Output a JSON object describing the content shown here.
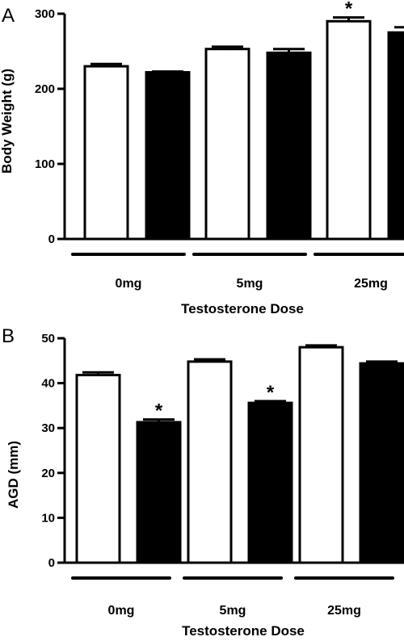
{
  "chart_data": [
    {
      "type": "bar",
      "panel_label": "A",
      "categories": [
        "0mg",
        "5mg",
        "25mg"
      ],
      "xlabel": "Testosterone Dose",
      "ylabel": "Body Weight (g)",
      "ylim": [
        0,
        300
      ],
      "yticks": [
        "0",
        "100",
        "200",
        "300"
      ],
      "series": [
        {
          "color": "#ffffff",
          "values": [
            230,
            253,
            290
          ],
          "errors": [
            3,
            3,
            5
          ],
          "significant": [
            false,
            false,
            true
          ]
        },
        {
          "color": "#000000",
          "values": [
            222,
            248,
            275
          ],
          "errors": [
            1,
            5,
            7
          ],
          "significant": [
            false,
            false,
            true
          ]
        }
      ],
      "significance_marker": "*"
    },
    {
      "type": "bar",
      "panel_label": "B",
      "categories": [
        "0mg",
        "5mg",
        "25mg"
      ],
      "xlabel": "Testosterone Dose",
      "ylabel": "AGD (mm)",
      "ylim": [
        0,
        50
      ],
      "yticks": [
        "0",
        "10",
        "20",
        "30",
        "40",
        "50"
      ],
      "series": [
        {
          "color": "#ffffff",
          "values": [
            41.8,
            44.8,
            48.0
          ],
          "errors": [
            0.6,
            0.5,
            0.4
          ],
          "significant": [
            false,
            false,
            false
          ]
        },
        {
          "color": "#000000",
          "values": [
            31.3,
            35.6,
            44.4
          ],
          "errors": [
            0.6,
            0.4,
            0.4
          ],
          "significant": [
            true,
            true,
            false
          ]
        }
      ],
      "significance_marker": "*"
    }
  ]
}
